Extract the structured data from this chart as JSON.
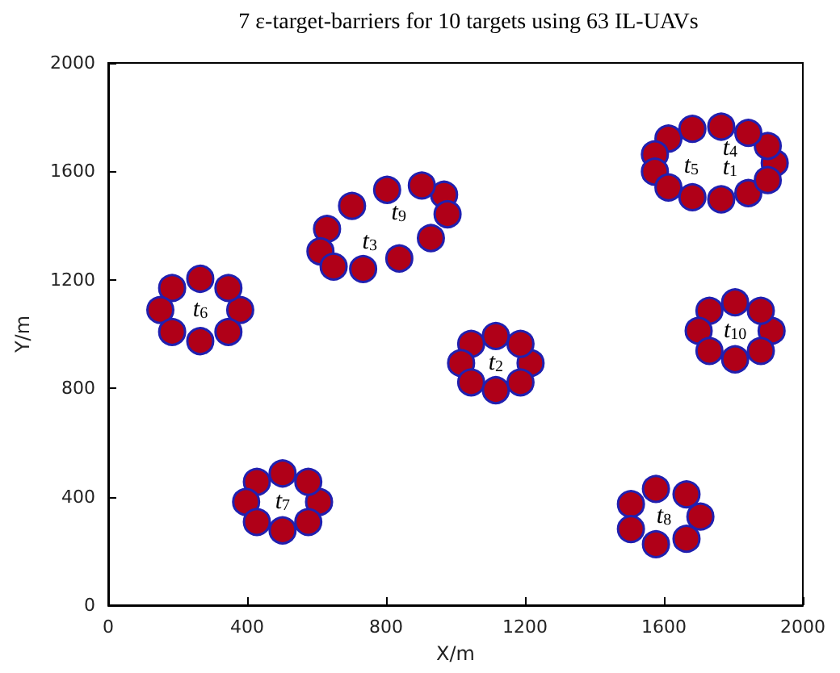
{
  "chart_data": {
    "type": "scatter",
    "title": "7 ε-target-barriers for 10 targets using 63 IL-UAVs",
    "xlabel": "X/m",
    "ylabel": "Y/m",
    "xlim": [
      0,
      2000
    ],
    "xticks": [
      0,
      400,
      800,
      1200,
      1600,
      2000
    ],
    "ylim": [
      0,
      2000
    ],
    "yticks": [
      0,
      400,
      800,
      1200,
      1600,
      2000
    ],
    "grid": false,
    "marker": "circle",
    "series": [
      {
        "name": "t$_{6}$",
        "color": "#b00018",
        "x": [
          380,
          346,
          265,
          184,
          150,
          184,
          265,
          346
        ],
        "values": [
          1089,
          1170,
          1204,
          1170,
          1089,
          1008,
          974,
          1008
        ]
      },
      {
        "name": "t$_{2}$",
        "color": "#b00018",
        "x": [
          1216,
          1187,
          1116,
          1045,
          1016,
          1045,
          1116,
          1187
        ],
        "values": [
          893,
          964,
          993,
          964,
          893,
          822,
          793,
          822
        ]
      },
      {
        "name": "t$_{10}$",
        "color": "#b00018",
        "x": [
          1910,
          1879,
          1805,
          1731,
          1700,
          1731,
          1805,
          1879
        ],
        "values": [
          1012,
          1086,
          1117,
          1086,
          1012,
          938,
          907,
          938
        ]
      },
      {
        "name": "t$_{7}$",
        "color": "#b00018",
        "x": [
          607,
          576,
          502,
          428,
          397,
          428,
          502,
          576
        ],
        "values": [
          381,
          455,
          486,
          455,
          381,
          307,
          276,
          307
        ]
      },
      {
        "name": "t$_{8}$",
        "color": "#b00018",
        "x": [
          1705,
          1665,
          1577,
          1505,
          1505,
          1577,
          1665
        ],
        "values": [
          327,
          409,
          429,
          373,
          281,
          225,
          245
        ]
      },
      {
        "name": "t$_{9}$ t$_{3}$",
        "color": "#b00018",
        "x": [
          967,
          903,
          803,
          702,
          630,
          611,
          649,
          734,
          838,
          929,
          977
        ],
        "values": [
          1514,
          1548,
          1532,
          1473,
          1388,
          1305,
          1249,
          1240,
          1279,
          1354,
          1442
        ]
      },
      {
        "name": "t$_{4}$ t$_{5}$ t$_{1}$",
        "color": "#b00018",
        "x": [
          1919,
          1899,
          1843,
          1765,
          1682,
          1613,
          1574,
          1574,
          1613,
          1682,
          1765,
          1843,
          1899
        ],
        "values": [
          1631,
          1694,
          1742,
          1765,
          1757,
          1721,
          1663,
          1599,
          1541,
          1505,
          1497,
          1520,
          1568
        ]
      }
    ]
  }
}
